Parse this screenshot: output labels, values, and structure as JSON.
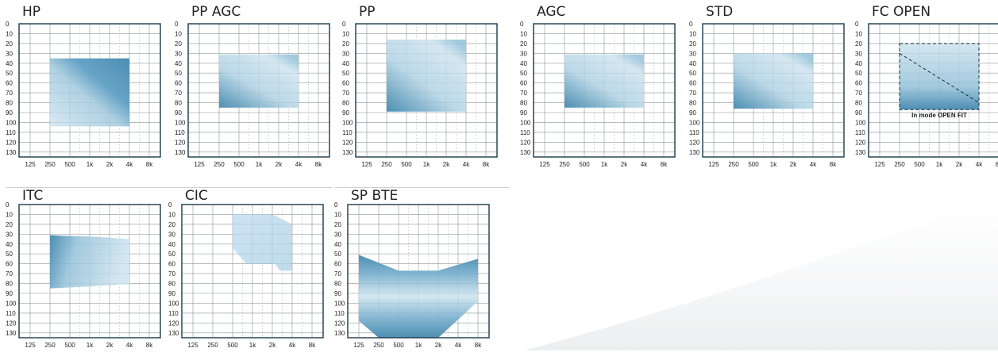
{
  "colors": {
    "frame": "#1b3a4b",
    "grid": "#9a9a9a",
    "fill_dark": "#3f86ad",
    "fill_light": "#d2e6f0"
  },
  "axes": {
    "x_ticks": [
      "125",
      "250",
      "500",
      "1k",
      "2k",
      "4k",
      "8k"
    ],
    "y_ticks": [
      "0",
      "10",
      "20",
      "30",
      "40",
      "50",
      "60",
      "70",
      "80",
      "90",
      "100",
      "110",
      "120",
      "130"
    ],
    "ylim": [
      0,
      135
    ],
    "invert_y": true,
    "x_scale": "log2 octave"
  },
  "panels": [
    {
      "title": "HP",
      "note": ""
    },
    {
      "title": "PP AGC",
      "note": ""
    },
    {
      "title": "PP",
      "note": ""
    },
    {
      "title": "AGC",
      "note": ""
    },
    {
      "title": "STD",
      "note": ""
    },
    {
      "title": "FC OPEN",
      "note": "In mode OPEN FIT"
    },
    {
      "title": "ITC",
      "note": ""
    },
    {
      "title": "CIC",
      "note": ""
    },
    {
      "title": "SP BTE",
      "note": ""
    }
  ],
  "chart_data": [
    {
      "type": "area",
      "title": "HP",
      "region": [
        [
          "250",
          35
        ],
        [
          "4k",
          35
        ],
        [
          "4k",
          104
        ],
        [
          "250",
          104
        ]
      ],
      "gradient": "diagonal"
    },
    {
      "type": "area",
      "title": "PP AGC",
      "region": [
        [
          "250",
          31
        ],
        [
          "4k",
          31
        ],
        [
          "4k",
          85
        ],
        [
          "250",
          85
        ]
      ],
      "gradient": "bottom-left"
    },
    {
      "type": "area",
      "title": "PP",
      "region": [
        [
          "250",
          16
        ],
        [
          "4k",
          16
        ],
        [
          "4k",
          89
        ],
        [
          "250",
          89
        ]
      ],
      "gradient": "bottom-left"
    },
    {
      "type": "area",
      "title": "AGC",
      "region": [
        [
          "250",
          31
        ],
        [
          "4k",
          31
        ],
        [
          "4k",
          85
        ],
        [
          "250",
          85
        ]
      ],
      "gradient": "bottom-left"
    },
    {
      "type": "area",
      "title": "STD",
      "region": [
        [
          "250",
          30
        ],
        [
          "4k",
          30
        ],
        [
          "4k",
          86
        ],
        [
          "250",
          86
        ]
      ],
      "gradient": "bottom-left"
    },
    {
      "type": "area",
      "title": "FC OPEN",
      "region": [
        [
          "250",
          20
        ],
        [
          "4k",
          20
        ],
        [
          "4k",
          87
        ],
        [
          "250",
          87
        ]
      ],
      "gradient": "vertical",
      "dashed_box": [
        [
          "250",
          20
        ],
        [
          "4k",
          20
        ],
        [
          "4k",
          87
        ],
        [
          "250",
          87
        ]
      ],
      "dashed_line": [
        [
          "250",
          30
        ],
        [
          "4k",
          80
        ]
      ]
    },
    {
      "type": "area",
      "title": "ITC",
      "region": [
        [
          "250",
          31
        ],
        [
          "500",
          32
        ],
        [
          "1k",
          32.5
        ],
        [
          "2k",
          33.5
        ],
        [
          "4k",
          35
        ],
        [
          "4k",
          81
        ],
        [
          "2k",
          82
        ],
        [
          "1k",
          83
        ],
        [
          "500",
          84
        ],
        [
          "250",
          85
        ]
      ],
      "gradient": "left"
    },
    {
      "type": "area",
      "title": "CIC",
      "region": [
        [
          "500",
          10
        ],
        [
          "2k",
          10
        ],
        [
          "4k",
          20
        ],
        [
          "4k",
          67
        ],
        [
          "2.6k",
          67
        ],
        [
          "2.2k",
          60
        ],
        [
          "800",
          60
        ],
        [
          "500",
          44
        ]
      ],
      "gradient": "flat"
    },
    {
      "type": "area",
      "title": "SP BTE",
      "region": [
        [
          "125",
          51
        ],
        [
          "500",
          67
        ],
        [
          "2k",
          67
        ],
        [
          "8k",
          55
        ],
        [
          "8k",
          98
        ],
        [
          "2k",
          135
        ],
        [
          "250",
          135
        ],
        [
          "125",
          118
        ]
      ],
      "gradient": "horizontal-bands"
    }
  ]
}
